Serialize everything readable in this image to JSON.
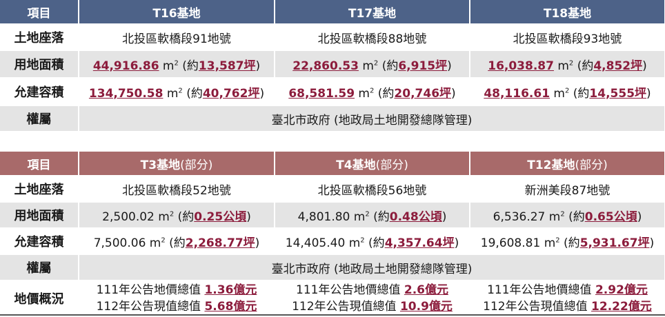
{
  "table1": {
    "header": {
      "col0": "項目",
      "col1": "T16基地",
      "col2": "T17基地",
      "col3": "T18基地"
    },
    "rows": {
      "location": {
        "label": "土地座落",
        "c1": "北投區軟橋段91地號",
        "c2": "北投區軟橋段88地號",
        "c3": "北投區軟橋段93地號"
      },
      "area": {
        "label": "用地面積",
        "c1": {
          "num": "44,916.86",
          "unit": " m",
          "sup": "2",
          "pre": " (約",
          "hl": "13,587坪",
          "post": ")"
        },
        "c2": {
          "num": "22,860.53",
          "unit": " m",
          "sup": "2",
          "pre": " (約",
          "hl": "6,915坪",
          "post": ")"
        },
        "c3": {
          "num": "16,038.87",
          "unit": " m",
          "sup": "2",
          "pre": " (約",
          "hl": "4,852坪",
          "post": ")"
        }
      },
      "far": {
        "label": "允建容積",
        "c1": {
          "num": "134,750.58",
          "unit": " m",
          "sup": "2",
          "pre": " (約",
          "hl": "40,762坪",
          "post": ")"
        },
        "c2": {
          "num": "68,581.59",
          "unit": " m",
          "sup": "2",
          "pre": " (約",
          "hl": "20,746坪",
          "post": ")"
        },
        "c3": {
          "num": "48,116.61",
          "unit": " m",
          "sup": "2",
          "pre": " (約",
          "hl": "14,555坪",
          "post": ")"
        }
      },
      "owner": {
        "label": "權屬",
        "value": "臺北市政府 (地政局土地開發總隊管理)"
      }
    }
  },
  "table2": {
    "header": {
      "col0": "項目",
      "col1": {
        "main": "T3基地",
        "sub": "(部分)"
      },
      "col2": {
        "main": "T4基地",
        "sub": "(部分)"
      },
      "col3": {
        "main": "T12基地",
        "sub": "(部分)"
      }
    },
    "rows": {
      "location": {
        "label": "土地座落",
        "c1": "北投區軟橋段52地號",
        "c2": "北投區軟橋段56地號",
        "c3": "新洲美段87地號"
      },
      "area": {
        "label": "用地面積",
        "c1": {
          "num": "2,500.02",
          "unit": " m",
          "sup": "2",
          "pre": " (約",
          "hl": "0.25公頃",
          "post": ")"
        },
        "c2": {
          "num": "4,801.80",
          "unit": " m",
          "sup": "2",
          "pre": " (約",
          "hl": "0.48公頃",
          "post": ")"
        },
        "c3": {
          "num": "6,536.27",
          "unit": " m",
          "sup": "2",
          "pre": " (約",
          "hl": "0.65公頃",
          "post": ")"
        }
      },
      "far": {
        "label": "允建容積",
        "c1": {
          "num": "7,500.06",
          "unit": " m",
          "sup": "2",
          "pre": " (約",
          "hl": "2,268.77坪",
          "post": ")"
        },
        "c2": {
          "num": "14,405.40",
          "unit": " m",
          "sup": "2",
          "pre": " (約",
          "hl": "4,357.64坪",
          "post": ")"
        },
        "c3": {
          "num": "19,608.81",
          "unit": " m",
          "sup": "2",
          "pre": " (約",
          "hl": "5,931.67坪",
          "post": ")"
        }
      },
      "owner": {
        "label": "權屬",
        "value": "臺北市政府 (地政局土地開發總隊管理)"
      },
      "price": {
        "label": "地價概況",
        "c1": {
          "l1": "111年公告地價總值 ",
          "v1": "1.36億元",
          "l2": "112年公告現值總值 ",
          "v2": "5.68億元"
        },
        "c2": {
          "l1": "111年公告地價總值 ",
          "v1": "2.6億元",
          "l2": "112年公告現值總值 ",
          "v2": "10.9億元"
        },
        "c3": {
          "l1": "111年公告地價總值 ",
          "v1": "2.92億元",
          "l2": "112年公告現值總值 ",
          "v2": "12.22億元"
        }
      }
    }
  }
}
